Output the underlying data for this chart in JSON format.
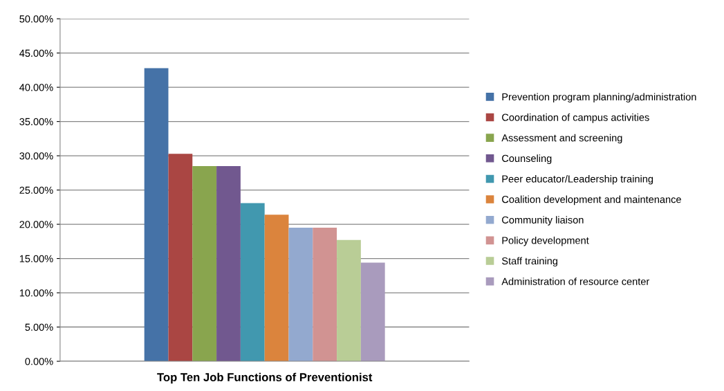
{
  "chart_data": {
    "type": "bar",
    "categories": [
      "Top Ten Job Functions of Preventionist"
    ],
    "series": [
      {
        "name": "Prevention program planning/administration",
        "color": "#4572a7",
        "values": [
          42.8
        ]
      },
      {
        "name": "Coordination of campus activities",
        "color": "#aa4643",
        "values": [
          30.3
        ]
      },
      {
        "name": "Assessment and screening",
        "color": "#89a54e",
        "values": [
          28.5
        ]
      },
      {
        "name": "Counseling",
        "color": "#71588f",
        "values": [
          28.5
        ]
      },
      {
        "name": "Peer educator/Leadership training",
        "color": "#4198af",
        "values": [
          23.1
        ]
      },
      {
        "name": "Coalition development and maintenance",
        "color": "#db843d",
        "values": [
          21.4
        ]
      },
      {
        "name": "Community liaison",
        "color": "#93a9cf",
        "values": [
          19.5
        ]
      },
      {
        "name": "Policy development",
        "color": "#d19392",
        "values": [
          19.5
        ]
      },
      {
        "name": "Staff training",
        "color": "#b9cd96",
        "values": [
          17.7
        ]
      },
      {
        "name": "Administration of resource center",
        "color": "#a99bbd",
        "values": [
          14.4
        ]
      }
    ],
    "ylim": [
      0,
      50
    ],
    "yticks": [
      {
        "value": 0,
        "label": "0.00%"
      },
      {
        "value": 5,
        "label": "5.00%"
      },
      {
        "value": 10,
        "label": "10.00%"
      },
      {
        "value": 15,
        "label": "15.00%"
      },
      {
        "value": 20,
        "label": "20.00%"
      },
      {
        "value": 25,
        "label": "25.00%"
      },
      {
        "value": 30,
        "label": "30.00%"
      },
      {
        "value": 35,
        "label": "35.00%"
      },
      {
        "value": 40,
        "label": "40.00%"
      },
      {
        "value": 45,
        "label": "45.00%"
      },
      {
        "value": 50,
        "label": "50.00%"
      }
    ],
    "grid": "y",
    "legend": "right"
  }
}
